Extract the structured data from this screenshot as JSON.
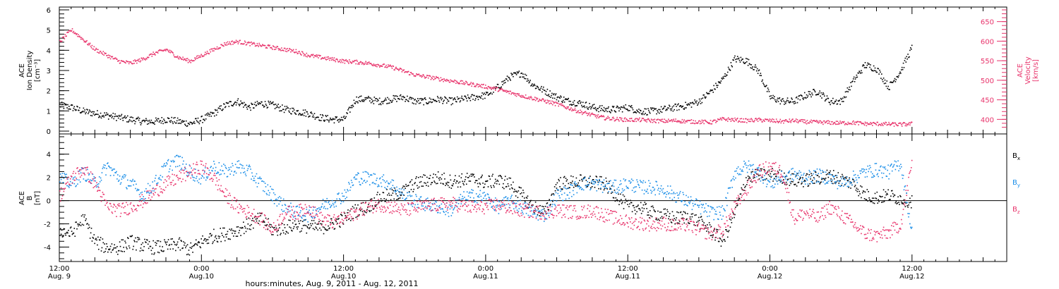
{
  "colors": {
    "black": "#000000",
    "pink": "#e8336b",
    "blue": "#1a8ee8"
  },
  "x_ticks": [
    {
      "t": 0,
      "time": "12:00",
      "date": "Aug. 9"
    },
    {
      "t": 12,
      "time": "0:00",
      "date": "Aug.10"
    },
    {
      "t": 24,
      "time": "12:00",
      "date": "Aug.10"
    },
    {
      "t": 36,
      "time": "0:00",
      "date": "Aug.11"
    },
    {
      "t": 48,
      "time": "12:00",
      "date": "Aug.11"
    },
    {
      "t": 60,
      "time": "0:00",
      "date": "Aug.12"
    },
    {
      "t": 72,
      "time": "12:00",
      "date": "Aug.12"
    }
  ],
  "xlabel": "hours:minutes, Aug.  9, 2011 - Aug. 12, 2011",
  "chart_data": [
    {
      "type": "scatter",
      "panel": "top",
      "x_unit": "hours since 12:00 Aug. 9, 2011",
      "xlim": [
        0,
        80
      ],
      "left_axis": {
        "label": [
          "ACE",
          "Ion Density",
          "[cm⁻³]"
        ],
        "ylim": [
          0,
          6
        ],
        "ticks": [
          0,
          1,
          2,
          3,
          4,
          5,
          6
        ],
        "color": "#000000"
      },
      "right_axis": {
        "label": [
          "ACE",
          "Velocity",
          "[km/s]"
        ],
        "ylim": [
          370,
          680
        ],
        "ticks": [
          400,
          450,
          500,
          550,
          600,
          650
        ],
        "color": "#e8336b"
      },
      "series": [
        {
          "axis": "left",
          "color": "#000000",
          "x": [
            0,
            1,
            2,
            3,
            4,
            5,
            6,
            7,
            8,
            9,
            10,
            11,
            12,
            13,
            14,
            15,
            16,
            17,
            18,
            19,
            20,
            21,
            22,
            23,
            24,
            25,
            26,
            27,
            28,
            29,
            30,
            31,
            32,
            33,
            34,
            35,
            36,
            37,
            38,
            39,
            40,
            41,
            42,
            43,
            44,
            45,
            46,
            47,
            48,
            49,
            50,
            51,
            52,
            53,
            54,
            55,
            56,
            57,
            58,
            59,
            60,
            61,
            62,
            63,
            64,
            65,
            66,
            67,
            68,
            69,
            70,
            71,
            72
          ],
          "y": [
            1.3,
            1.2,
            1.0,
            0.9,
            0.8,
            0.7,
            0.6,
            0.5,
            0.5,
            0.6,
            0.5,
            0.4,
            0.6,
            0.9,
            1.3,
            1.5,
            1.2,
            1.4,
            1.3,
            1.1,
            1.0,
            0.9,
            0.7,
            0.6,
            0.6,
            1.6,
            1.6,
            1.5,
            1.6,
            1.7,
            1.5,
            1.5,
            1.6,
            1.5,
            1.6,
            1.7,
            1.8,
            2.2,
            2.7,
            2.9,
            2.3,
            2.0,
            1.7,
            1.5,
            1.4,
            1.2,
            1.1,
            1.1,
            1.2,
            1.0,
            1.0,
            1.1,
            1.2,
            1.3,
            1.5,
            2.0,
            2.6,
            3.6,
            3.5,
            3.0,
            1.7,
            1.5,
            1.5,
            1.8,
            2.0,
            1.5,
            1.5,
            2.5,
            3.3,
            3.1,
            2.2,
            3.0,
            4.2
          ]
        },
        {
          "axis": "right",
          "color": "#e8336b",
          "x": [
            0,
            1,
            2,
            3,
            4,
            5,
            6,
            7,
            8,
            9,
            10,
            11,
            12,
            13,
            14,
            15,
            16,
            17,
            18,
            19,
            20,
            21,
            22,
            23,
            24,
            25,
            26,
            27,
            28,
            29,
            30,
            31,
            32,
            33,
            34,
            35,
            36,
            37,
            38,
            39,
            40,
            41,
            42,
            43,
            44,
            45,
            46,
            47,
            48,
            49,
            50,
            51,
            52,
            53,
            54,
            55,
            56,
            57,
            58,
            59,
            60,
            61,
            62,
            63,
            64,
            65,
            66,
            67,
            68,
            69,
            70,
            71,
            72
          ],
          "y": [
            600,
            630,
            605,
            580,
            565,
            550,
            545,
            555,
            570,
            580,
            560,
            550,
            565,
            580,
            595,
            600,
            595,
            590,
            585,
            580,
            575,
            565,
            560,
            555,
            550,
            548,
            545,
            540,
            535,
            525,
            515,
            510,
            505,
            500,
            495,
            490,
            485,
            478,
            470,
            462,
            455,
            448,
            440,
            430,
            420,
            412,
            405,
            402,
            400,
            400,
            398,
            397,
            398,
            396,
            395,
            394,
            402,
            400,
            398,
            400,
            398,
            396,
            398,
            395,
            394,
            393,
            392,
            393,
            390,
            390,
            389,
            388,
            390
          ]
        }
      ]
    },
    {
      "type": "scatter",
      "panel": "bottom",
      "x_unit": "hours since 12:00 Aug. 9, 2011",
      "xlim": [
        0,
        80
      ],
      "left_axis": {
        "label": [
          "ACE",
          "B",
          "[nT]"
        ],
        "ylim": [
          -5,
          5.5
        ],
        "ticks": [
          -4,
          -2,
          0,
          2,
          4
        ]
      },
      "zero_line": true,
      "legend_placement": "right",
      "series": [
        {
          "name": "Bx",
          "color": "#000000",
          "x": [
            0,
            1,
            2,
            3,
            4,
            5,
            6,
            7,
            8,
            9,
            10,
            11,
            12,
            13,
            14,
            15,
            16,
            17,
            18,
            19,
            20,
            21,
            22,
            23,
            24,
            25,
            26,
            27,
            28,
            29,
            30,
            31,
            32,
            33,
            34,
            35,
            36,
            37,
            38,
            39,
            40,
            41,
            42,
            43,
            44,
            45,
            46,
            47,
            48,
            49,
            50,
            51,
            52,
            53,
            54,
            55,
            56,
            57,
            58,
            59,
            60,
            61,
            62,
            63,
            64,
            65,
            66,
            67,
            68,
            69,
            70,
            71,
            72
          ],
          "y": [
            -2.5,
            -2.8,
            -1.5,
            -3.5,
            -4,
            -4,
            -3.5,
            -3.8,
            -4,
            -3.9,
            -3.7,
            -4.2,
            -3.5,
            -3,
            -2.8,
            -2.5,
            -2,
            -1.5,
            -2.5,
            -2.3,
            -2,
            -2.2,
            -2.3,
            -2,
            -1.5,
            -0.8,
            -0.5,
            0.3,
            0.5,
            0.8,
            1.5,
            1.8,
            2.0,
            1.7,
            1.8,
            1.9,
            1.6,
            1.8,
            1.5,
            0.5,
            -0.5,
            -1,
            1.5,
            1.6,
            1.7,
            1.6,
            1.5,
            0.5,
            -0.5,
            -0.5,
            -1,
            -1.2,
            -1.5,
            -1.3,
            -1.8,
            -2.5,
            -3.5,
            -1,
            2,
            2.2,
            2.3,
            2.1,
            1.8,
            1.8,
            2.0,
            2.2,
            1.9,
            1.5,
            0.5,
            0.3,
            0.5,
            0.2,
            0
          ]
        },
        {
          "name": "By",
          "color": "#1a8ee8",
          "x": [
            0,
            1,
            2,
            3,
            4,
            5,
            6,
            7,
            8,
            9,
            10,
            11,
            12,
            13,
            14,
            15,
            16,
            17,
            18,
            19,
            20,
            21,
            22,
            23,
            24,
            25,
            26,
            27,
            28,
            29,
            30,
            31,
            32,
            33,
            34,
            35,
            36,
            37,
            38,
            39,
            40,
            41,
            42,
            43,
            44,
            45,
            46,
            47,
            48,
            49,
            50,
            51,
            52,
            53,
            54,
            55,
            56,
            57,
            58,
            59,
            60,
            61,
            62,
            63,
            64,
            65,
            66,
            67,
            68,
            69,
            70,
            71,
            72
          ],
          "y": [
            2,
            1.5,
            2.5,
            1.5,
            3,
            2,
            1.5,
            0.5,
            1.5,
            3,
            3.5,
            2.5,
            2,
            3,
            2.5,
            3,
            2.5,
            1.5,
            0.5,
            -0.5,
            -1,
            -1.2,
            -0.5,
            0,
            0.5,
            2,
            2,
            1.8,
            1.5,
            0.5,
            0,
            -0.3,
            -0.5,
            -0.8,
            0.2,
            0.5,
            0.3,
            -0.5,
            0,
            -0.5,
            -1,
            -1.2,
            0.5,
            0.8,
            1.5,
            1.5,
            1.3,
            1.2,
            1.5,
            1.2,
            1.2,
            1.0,
            0.5,
            0,
            -0.5,
            -1.0,
            -1.0,
            2.5,
            3,
            2.5,
            1.5,
            2.0,
            2.3,
            2.0,
            2.2,
            2.0,
            1.5,
            2,
            2.5,
            2.7,
            2.5,
            3.3,
            -3
          ]
        },
        {
          "name": "Bz",
          "color": "#e8336b",
          "x": [
            0,
            1,
            2,
            3,
            4,
            5,
            6,
            7,
            8,
            9,
            10,
            11,
            12,
            13,
            14,
            15,
            16,
            17,
            18,
            19,
            20,
            21,
            22,
            23,
            24,
            25,
            26,
            27,
            28,
            29,
            30,
            31,
            32,
            33,
            34,
            35,
            36,
            37,
            38,
            39,
            40,
            41,
            42,
            43,
            44,
            45,
            46,
            47,
            48,
            49,
            50,
            51,
            52,
            53,
            54,
            55,
            56,
            57,
            58,
            59,
            60,
            61,
            62,
            63,
            64,
            65,
            66,
            67,
            68,
            69,
            70,
            71,
            72
          ],
          "y": [
            0.5,
            2,
            2.8,
            1.5,
            -0.5,
            -0.8,
            -0.5,
            0,
            0.8,
            1.5,
            2,
            2.5,
            3,
            2,
            0.5,
            -0.5,
            -1,
            -1.5,
            -2.5,
            -1,
            -1,
            -0.5,
            -1.5,
            -1.8,
            -1.5,
            -1,
            -0.5,
            -0.3,
            -0.5,
            -0.8,
            -0.6,
            -0.4,
            -0.3,
            -0.2,
            -0.4,
            -0.6,
            -0.5,
            -0.3,
            -0.6,
            -0.8,
            -0.9,
            -1.0,
            -0.8,
            -0.9,
            -1.0,
            -0.8,
            -1.2,
            -1.5,
            -1.8,
            -1.9,
            -2,
            -1.9,
            -2.2,
            -2.0,
            -2.5,
            -2.8,
            -2.5,
            -0.5,
            1.0,
            2.5,
            3.0,
            2.5,
            -1.5,
            -1,
            -1.5,
            -0.5,
            -1.2,
            -2,
            -2.8,
            -3,
            -2.7,
            -2,
            3.5
          ]
        }
      ]
    }
  ]
}
